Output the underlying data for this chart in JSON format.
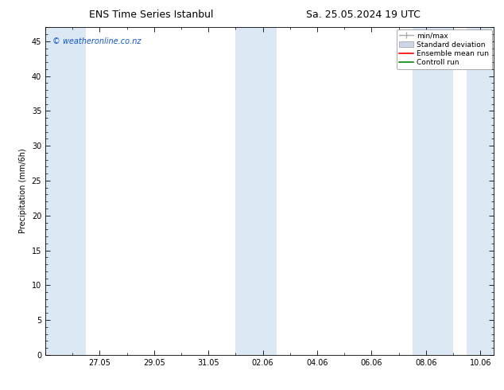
{
  "title_left": "ENS Time Series Istanbul",
  "title_right": "Sa. 25.05.2024 19 UTC",
  "ylabel": "Precipitation (mm/6h)",
  "watermark": "© weatheronline.co.nz",
  "ylim": [
    0,
    47
  ],
  "yticks": [
    0,
    5,
    10,
    15,
    20,
    25,
    30,
    35,
    40,
    45
  ],
  "xtick_labels": [
    "27.05",
    "29.05",
    "31.05",
    "02.06",
    "04.06",
    "06.06",
    "08.06",
    "10.06"
  ],
  "xtick_positions": [
    2,
    4,
    6,
    8,
    10,
    12,
    14,
    16
  ],
  "xlim": [
    0,
    16.5
  ],
  "background_color": "#ffffff",
  "plot_bg_color": "#ffffff",
  "shaded_bands_color": "#dce9f5",
  "shaded_regions": [
    [
      0.0,
      1.5
    ],
    [
      7.0,
      8.5
    ],
    [
      13.5,
      15.0
    ],
    [
      15.5,
      16.5
    ]
  ],
  "legend_labels": [
    "min/max",
    "Standard deviation",
    "Ensemble mean run",
    "Controll run"
  ],
  "legend_colors": [
    "#aaaaaa",
    "#c8d8e8",
    "#ff0000",
    "#008800"
  ],
  "title_fontsize": 9,
  "axis_label_fontsize": 7,
  "tick_fontsize": 7,
  "watermark_color": "#1155cc",
  "watermark_fontsize": 7
}
